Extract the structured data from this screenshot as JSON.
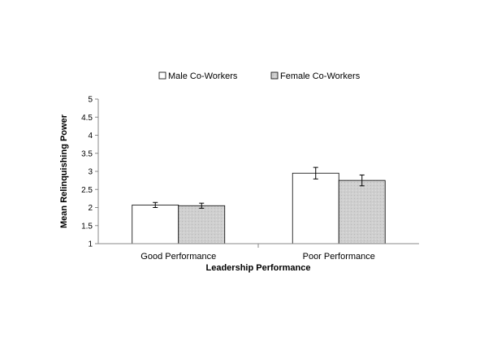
{
  "chart_data": {
    "type": "bar",
    "xlabel": "Leadership Performance",
    "ylabel": "Mean Relinquishing Power",
    "ylim": [
      1,
      5
    ],
    "yticks": [
      "1",
      "1.5",
      "2",
      "2.5",
      "3",
      "3.5",
      "4",
      "4.5",
      "5"
    ],
    "categories": [
      "Good Performance",
      "Poor Performance"
    ],
    "legend_position": "top",
    "series": [
      {
        "name": "Male Co-Workers",
        "values": [
          2.07,
          2.95
        ],
        "error": [
          0.07,
          0.16
        ],
        "color": "#ffffff"
      },
      {
        "name": "Female Co-Workers",
        "values": [
          2.05,
          2.75
        ],
        "error": [
          0.07,
          0.15
        ],
        "color": "#cfcfcf"
      }
    ]
  }
}
